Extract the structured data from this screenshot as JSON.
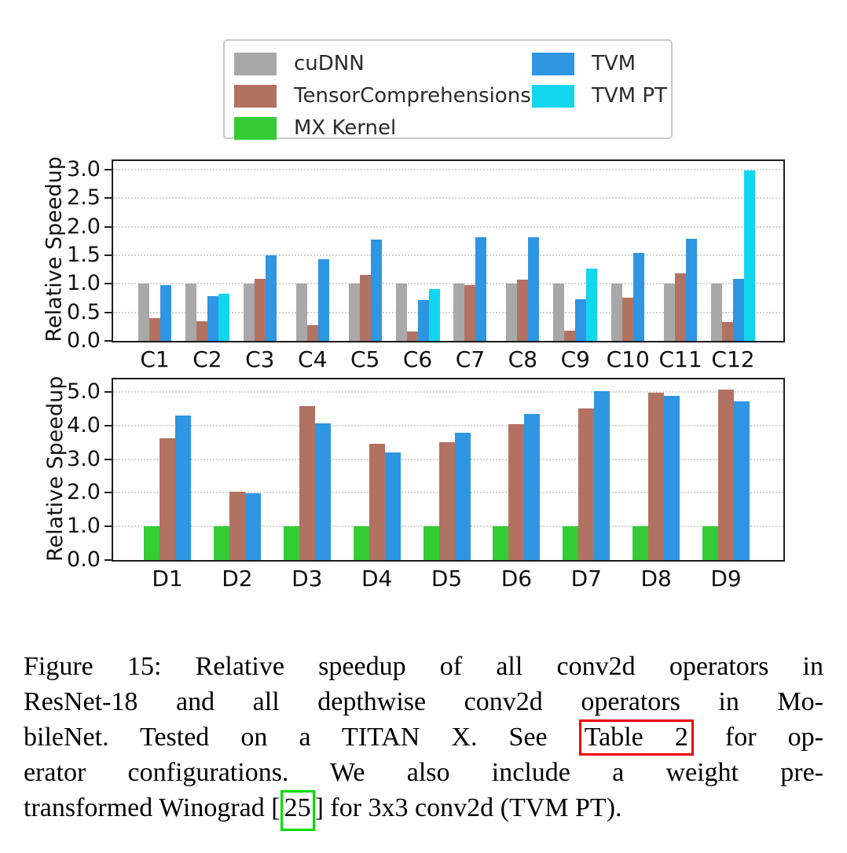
{
  "legend": {
    "items": [
      {
        "label": "cuDNN",
        "color": "#a8a8a8"
      },
      {
        "label": "TensorComprehensions",
        "color": "#b27262"
      },
      {
        "label": "MX Kernel",
        "color": "#34cc34"
      },
      {
        "label": "TVM",
        "color": "#2e96e3"
      },
      {
        "label": "TVM PT",
        "color": "#12d6ee"
      }
    ]
  },
  "chart_data": [
    {
      "type": "bar",
      "title": "",
      "xlabel": "",
      "ylabel": "Relative Speedup",
      "ylim": [
        0,
        3.15
      ],
      "ytick_labels": [
        "0.0",
        "0.5",
        "1.0",
        "1.5",
        "2.0",
        "2.5",
        "3.0"
      ],
      "grid": true,
      "legend_position": "top",
      "categories": [
        "C1",
        "C2",
        "C3",
        "C4",
        "C5",
        "C6",
        "C7",
        "C8",
        "C9",
        "C10",
        "C11",
        "C12"
      ],
      "series": [
        {
          "name": "cuDNN",
          "color": "#a8a8a8",
          "values": [
            1.0,
            1.0,
            1.0,
            1.0,
            1.0,
            1.0,
            1.0,
            1.0,
            1.0,
            1.0,
            1.0,
            1.0
          ]
        },
        {
          "name": "TensorComprehensions",
          "color": "#b27262",
          "values": [
            0.4,
            0.35,
            1.08,
            0.27,
            1.15,
            0.16,
            0.98,
            1.07,
            0.18,
            0.75,
            1.18,
            0.33
          ]
        },
        {
          "name": "TVM",
          "color": "#2e96e3",
          "values": [
            0.98,
            0.78,
            1.5,
            1.43,
            1.78,
            0.72,
            1.82,
            1.82,
            0.73,
            1.54,
            1.79,
            1.09
          ]
        },
        {
          "name": "TVM PT",
          "color": "#12d6ee",
          "values": [
            null,
            0.83,
            null,
            null,
            null,
            0.91,
            null,
            null,
            1.26,
            null,
            null,
            2.98
          ]
        }
      ]
    },
    {
      "type": "bar",
      "title": "",
      "xlabel": "",
      "ylabel": "Relative Speedup",
      "ylim": [
        0,
        5.37
      ],
      "ytick_labels": [
        "0.0",
        "1.0",
        "2.0",
        "3.0",
        "4.0",
        "5.0"
      ],
      "grid": true,
      "categories": [
        "D1",
        "D2",
        "D3",
        "D4",
        "D5",
        "D6",
        "D7",
        "D8",
        "D9"
      ],
      "series": [
        {
          "name": "MX Kernel",
          "color": "#34cc34",
          "values": [
            1.0,
            1.0,
            1.0,
            1.0,
            1.0,
            1.0,
            1.0,
            1.0,
            1.0
          ]
        },
        {
          "name": "TensorComprehensions",
          "color": "#b27262",
          "values": [
            3.62,
            2.03,
            4.57,
            3.45,
            3.5,
            4.03,
            4.5,
            4.97,
            5.07
          ]
        },
        {
          "name": "TVM",
          "color": "#2e96e3",
          "values": [
            4.3,
            1.98,
            4.07,
            3.2,
            3.78,
            4.35,
            5.02,
            4.88,
            4.72
          ]
        }
      ]
    }
  ],
  "caption": {
    "line1": "Figure 15: Relative speedup of all conv2d operators in",
    "line2": "ResNet-18 and all depthwise conv2d operators in Mo-",
    "line3_pre": "bileNet.  Tested on a TITAN X. See ",
    "line3_box": "Table 2",
    "line3_post": " for op-",
    "line4": "erator configurations.  We also include a weight pre-",
    "line5_pre": "transformed Winograd [",
    "line5_box": "25",
    "line5_post": "] for 3x3 conv2d (TVM PT).",
    "box_colors": {
      "table_ref": "#f10000",
      "cite_ref": "#00dc00"
    }
  }
}
